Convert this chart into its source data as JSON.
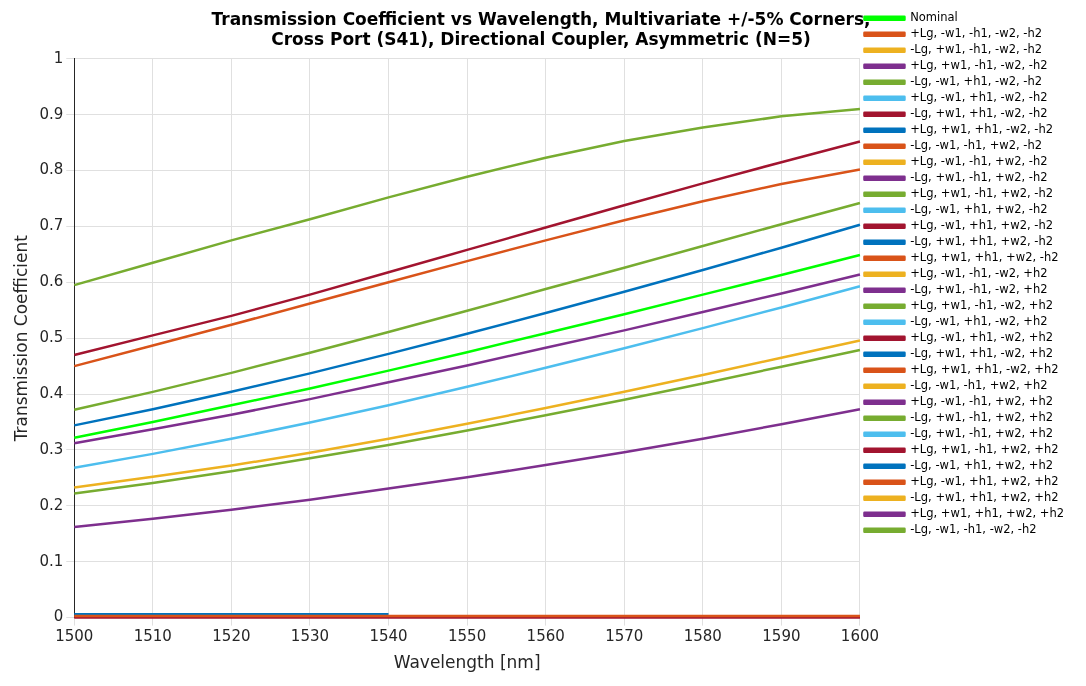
{
  "chart_data": {
    "type": "line",
    "title": "Transmission Coefficient vs Wavelength, Multivariate +/-5% Corners,\nCross Port (S41), Directional Coupler, Asymmetric (N=5)",
    "xlabel": "Wavelength [nm]",
    "ylabel": "Transmission Coefficient",
    "x": [
      1500,
      1510,
      1520,
      1530,
      1540,
      1550,
      1560,
      1570,
      1580,
      1590,
      1600
    ],
    "xlim": [
      1500,
      1600
    ],
    "xticks": [
      1500,
      1510,
      1520,
      1530,
      1540,
      1550,
      1560,
      1570,
      1580,
      1590,
      1600
    ],
    "ylim": [
      0,
      1
    ],
    "yticks": [
      0,
      0.1,
      0.2,
      0.3,
      0.4,
      0.5,
      0.6,
      0.7,
      0.8,
      0.9,
      1
    ],
    "grid": true,
    "legend": "right",
    "marker": "none",
    "line_style": "solid",
    "series": [
      {
        "name": "Nominal",
        "color": "#00ff00",
        "values": [
          0.322,
          0.35,
          0.38,
          0.41,
          0.442,
          0.475,
          0.509,
          0.543,
          0.578,
          0.613,
          0.649
        ]
      },
      {
        "name": "+Lg, -w1, -h1, -w2, -h2",
        "color": "#d95319",
        "values": [
          0.003,
          0.003,
          0.003,
          0.003,
          0.003,
          0.003,
          0.003,
          0.003,
          0.003,
          0.003,
          0.003
        ]
      },
      {
        "name": "-Lg, +w1, -h1, -w2, -h2",
        "color": "#edb120",
        "values": [
          0.233,
          0.252,
          0.272,
          0.295,
          0.32,
          0.347,
          0.375,
          0.404,
          0.434,
          0.465,
          0.496
        ]
      },
      {
        "name": "+Lg, +w1, -h1, -w2, -h2",
        "color": "#7e2f8e",
        "values": [
          null,
          null,
          null,
          null,
          null,
          null,
          null,
          null,
          null,
          null,
          null
        ]
      },
      {
        "name": "-Lg, -w1, +h1, -w2, -h2",
        "color": "#77ac30",
        "values": [
          0.372,
          0.404,
          0.438,
          0.474,
          0.511,
          0.549,
          0.588,
          0.626,
          0.665,
          0.704,
          0.742
        ]
      },
      {
        "name": "+Lg, -w1, +h1, -w2, -h2",
        "color": "#4dbeee",
        "values": [
          null,
          null,
          null,
          null,
          null,
          null,
          null,
          null,
          null,
          null,
          null
        ]
      },
      {
        "name": "-Lg, +w1, +h1, -w2, -h2",
        "color": "#a2142f",
        "values": [
          0.47,
          0.505,
          0.54,
          0.578,
          0.618,
          0.658,
          0.698,
          0.738,
          0.777,
          0.815,
          0.852
        ]
      },
      {
        "name": "+Lg, +w1, +h1, -w2, -h2",
        "color": "#0072bd",
        "values": [
          0.006,
          0.006,
          0.006,
          0.006,
          0.006,
          null,
          null,
          null,
          null,
          null,
          null
        ]
      },
      {
        "name": "-Lg, -w1, -h1, +w2, -h2",
        "color": "#d95319",
        "values": [
          0.45,
          0.487,
          0.524,
          0.562,
          0.6,
          0.638,
          0.675,
          0.711,
          0.745,
          0.776,
          0.802
        ]
      },
      {
        "name": "+Lg, -w1, -h1, +w2, -h2",
        "color": "#edb120",
        "values": [
          null,
          null,
          null,
          null,
          null,
          null,
          null,
          null,
          null,
          null,
          null
        ]
      },
      {
        "name": "-Lg, +w1, -h1, +w2, -h2",
        "color": "#7e2f8e",
        "values": [
          0.312,
          0.337,
          0.363,
          0.391,
          0.421,
          0.451,
          0.483,
          0.514,
          0.547,
          0.58,
          0.614
        ]
      },
      {
        "name": "+Lg, +w1, -h1, +w2, -h2",
        "color": "#77ac30",
        "values": [
          null,
          null,
          null,
          null,
          null,
          null,
          null,
          null,
          null,
          null,
          null
        ]
      },
      {
        "name": "-Lg, -w1, +h1, +w2, -h2",
        "color": "#4dbeee",
        "values": [
          0.268,
          0.293,
          0.32,
          0.349,
          0.38,
          0.413,
          0.447,
          0.482,
          0.518,
          0.555,
          0.593
        ]
      },
      {
        "name": "+Lg, -w1, +h1, +w2, -h2",
        "color": "#a2142f",
        "values": [
          0,
          0,
          0,
          0,
          0,
          0,
          0,
          0,
          0,
          0,
          0
        ]
      },
      {
        "name": "-Lg, +w1, +h1, +w2, -h2",
        "color": "#0072bd",
        "values": [
          0.344,
          0.373,
          0.404,
          0.437,
          0.472,
          0.508,
          0.545,
          0.583,
          0.622,
          0.662,
          0.703
        ]
      },
      {
        "name": "+Lg, +w1, +h1, +w2, -h2",
        "color": "#d95319",
        "values": [
          null,
          null,
          null,
          null,
          null,
          null,
          null,
          null,
          null,
          null,
          null
        ]
      },
      {
        "name": "+Lg, -w1, -h1, -w2, +h2",
        "color": "#edb120",
        "values": [
          null,
          null,
          null,
          null,
          null,
          null,
          null,
          null,
          null,
          null,
          null
        ]
      },
      {
        "name": "-Lg, +w1, -h1, -w2, +h2",
        "color": "#7e2f8e",
        "values": [
          0.162,
          0.177,
          0.193,
          0.211,
          0.231,
          0.251,
          0.273,
          0.296,
          0.32,
          0.346,
          0.373
        ]
      },
      {
        "name": "+Lg, +w1, -h1, -w2, +h2",
        "color": "#77ac30",
        "values": [
          null,
          null,
          null,
          null,
          null,
          null,
          null,
          null,
          null,
          null,
          null
        ]
      },
      {
        "name": "-Lg, -w1, +h1, -w2, +h2",
        "color": "#4dbeee",
        "values": [
          null,
          null,
          null,
          null,
          null,
          null,
          null,
          null,
          null,
          null,
          null
        ]
      },
      {
        "name": "+Lg, -w1, +h1, -w2, +h2",
        "color": "#a2142f",
        "values": [
          null,
          null,
          null,
          null,
          null,
          null,
          null,
          null,
          null,
          null,
          null
        ]
      },
      {
        "name": "-Lg, +w1, +h1, -w2, +h2",
        "color": "#0072bd",
        "values": [
          null,
          null,
          null,
          null,
          null,
          null,
          null,
          null,
          null,
          null,
          null
        ]
      },
      {
        "name": "+Lg, +w1, +h1, -w2, +h2",
        "color": "#d95319",
        "values": [
          null,
          null,
          null,
          null,
          null,
          null,
          null,
          null,
          null,
          null,
          null
        ]
      },
      {
        "name": "-Lg, -w1, -h1, +w2, +h2",
        "color": "#edb120",
        "values": [
          null,
          null,
          null,
          null,
          null,
          null,
          null,
          null,
          null,
          null,
          null
        ]
      },
      {
        "name": "+Lg, -w1, -h1, +w2, +h2",
        "color": "#7e2f8e",
        "values": [
          null,
          null,
          null,
          null,
          null,
          null,
          null,
          null,
          null,
          null,
          null
        ]
      },
      {
        "name": "-Lg, +w1, -h1, +w2, +h2",
        "color": "#77ac30",
        "values": [
          0.222,
          0.241,
          0.262,
          0.285,
          0.309,
          0.335,
          0.362,
          0.39,
          0.419,
          0.449,
          0.479
        ]
      },
      {
        "name": "-Lg, +w1, -h1, +w2, +h2",
        "color": "#4dbeee",
        "values": [
          null,
          null,
          null,
          null,
          null,
          null,
          null,
          null,
          null,
          null,
          null
        ]
      },
      {
        "name": "+Lg, +w1, -h1, +w2, +h2",
        "color": "#a2142f",
        "values": [
          null,
          null,
          null,
          null,
          null,
          null,
          null,
          null,
          null,
          null,
          null
        ]
      },
      {
        "name": "-Lg, -w1, +h1, +w2, +h2",
        "color": "#0072bd",
        "values": [
          null,
          null,
          null,
          null,
          null,
          null,
          null,
          null,
          null,
          null,
          null
        ]
      },
      {
        "name": "+Lg, -w1, +h1, +w2, +h2",
        "color": "#d95319",
        "values": [
          null,
          null,
          null,
          null,
          null,
          null,
          null,
          null,
          null,
          null,
          null
        ]
      },
      {
        "name": "-Lg, +w1, +h1, +w2, +h2",
        "color": "#edb120",
        "values": [
          null,
          null,
          null,
          null,
          null,
          null,
          null,
          null,
          null,
          null,
          null
        ]
      },
      {
        "name": "+Lg, +w1, +h1, +w2, +h2",
        "color": "#7e2f8e",
        "values": [
          null,
          null,
          null,
          null,
          null,
          null,
          null,
          null,
          null,
          null,
          null
        ]
      },
      {
        "name": "-Lg, -w1, -h1, -w2, -h2",
        "color": "#77ac30",
        "values": [
          0.595,
          0.635,
          0.675,
          0.713,
          0.752,
          0.789,
          0.823,
          0.853,
          0.877,
          0.897,
          0.91
        ]
      }
    ]
  }
}
